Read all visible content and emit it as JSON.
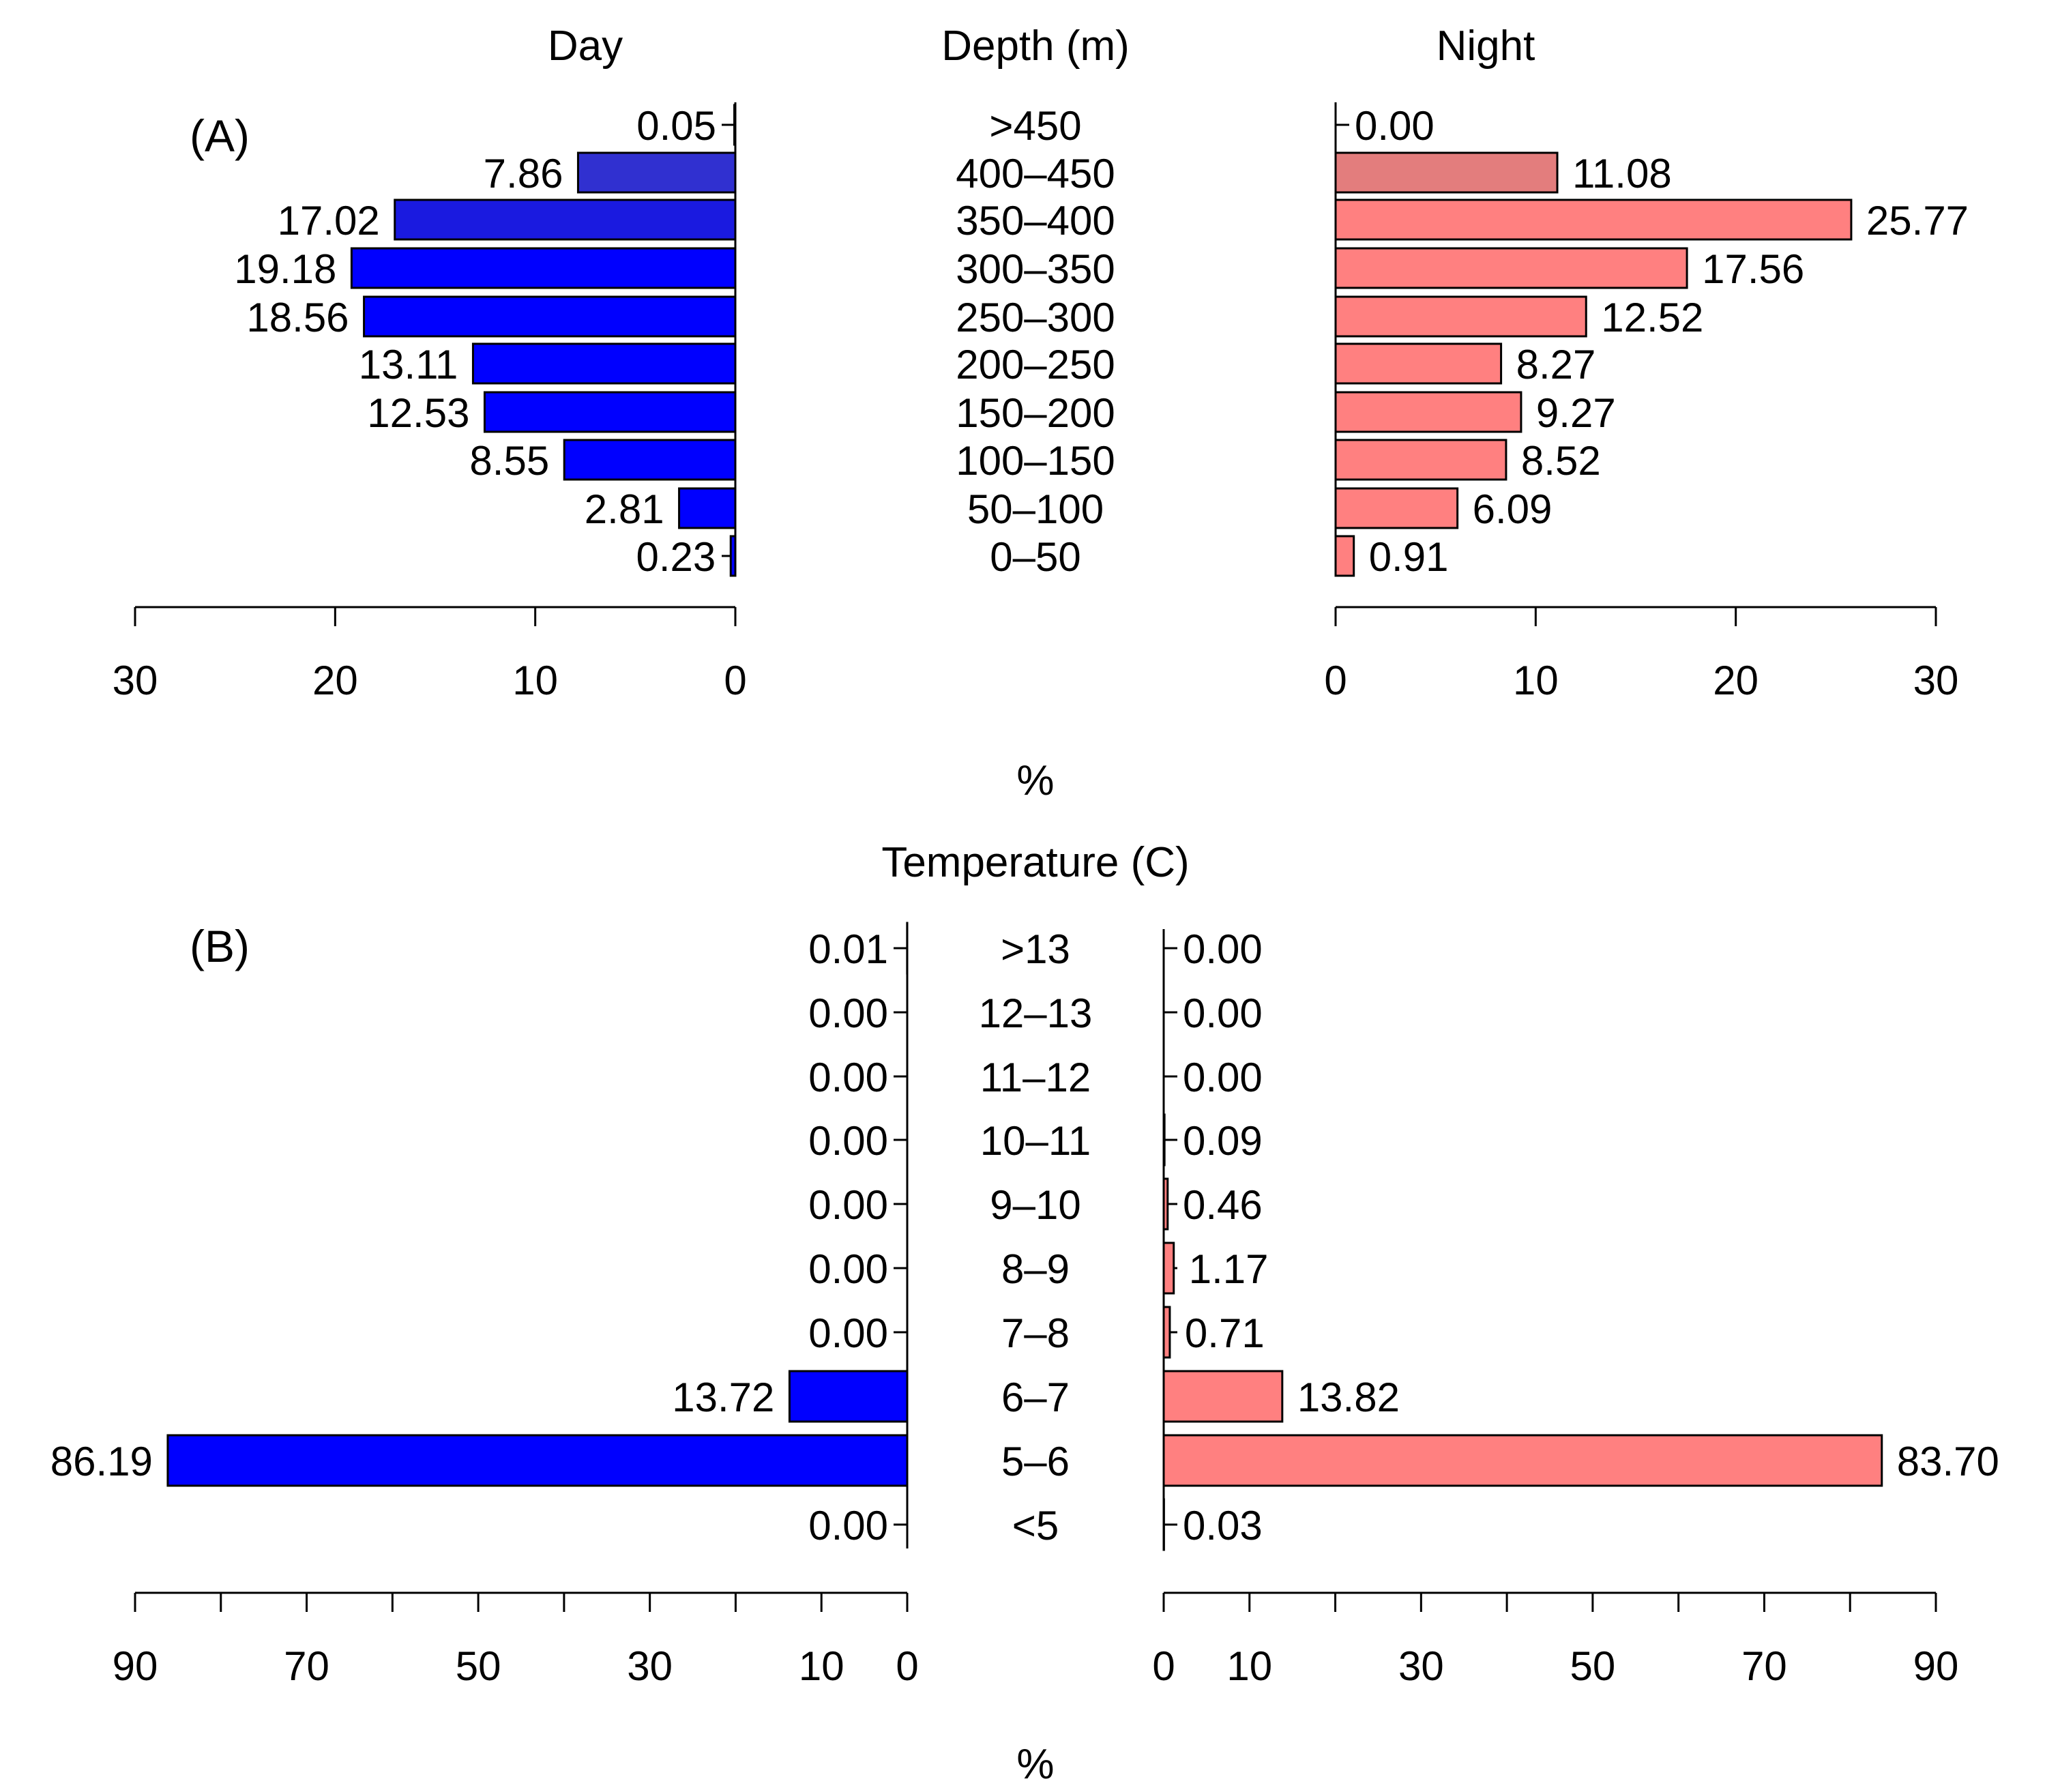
{
  "chart_data": [
    {
      "type": "bar",
      "panel_label": "(A)",
      "category_title": "Depth (m)",
      "categories": [
        ">450",
        "400–450",
        "350–400",
        "300–350",
        "250–300",
        "200–250",
        "150–200",
        "100–150",
        "50–100",
        "0–50"
      ],
      "series": [
        {
          "name": "Day",
          "values": [
            0.05,
            7.86,
            17.02,
            19.18,
            18.56,
            13.11,
            12.53,
            8.55,
            2.81,
            0.23
          ],
          "value_labels": [
            "0.05",
            "7.86",
            "17.02",
            "19.18",
            "18.56",
            "13.11",
            "12.53",
            "8.55",
            "2.81",
            "0.23"
          ],
          "colors": [
            "#2020d0",
            "#3030d0",
            "#1a1ae0",
            "#0000ff",
            "#0000ff",
            "#0000ff",
            "#0000ff",
            "#0000ff",
            "#0000ff",
            "#0000ff"
          ],
          "xlim": [
            0,
            30
          ],
          "ticks": [
            30,
            20,
            10,
            0
          ]
        },
        {
          "name": "Night",
          "values": [
            0.0,
            11.08,
            25.77,
            17.56,
            12.52,
            8.27,
            9.27,
            8.52,
            6.09,
            0.91
          ],
          "value_labels": [
            "0.00",
            "11.08",
            "25.77",
            "17.56",
            "12.52",
            "8.27",
            "9.27",
            "8.52",
            "6.09",
            "0.91"
          ],
          "colors": [
            "#ff8080",
            "#e37d7d",
            "#ff8080",
            "#ff8080",
            "#ff8080",
            "#ff8080",
            "#ff8080",
            "#ff8080",
            "#ff8080",
            "#ff8080"
          ],
          "xlim": [
            0,
            30
          ],
          "ticks": [
            0,
            10,
            20,
            30
          ]
        }
      ],
      "xlabel": "%"
    },
    {
      "type": "bar",
      "panel_label": "(B)",
      "category_title": "Temperature (C)",
      "categories": [
        ">13",
        "12–13",
        "11–12",
        "10–11",
        "9–10",
        "8–9",
        "7–8",
        "6–7",
        "5–6",
        "<5"
      ],
      "series": [
        {
          "name": "Day",
          "values": [
            0.01,
            0.0,
            0.0,
            0.0,
            0.0,
            0.0,
            0.0,
            13.72,
            86.19,
            0.0
          ],
          "value_labels": [
            "0.01",
            "0.00",
            "0.00",
            "0.00",
            "0.00",
            "0.00",
            "0.00",
            "13.72",
            "86.19",
            "0.00"
          ],
          "color": "#0000ff",
          "xlim": [
            0,
            90
          ],
          "ticks": [
            90,
            70,
            50,
            30,
            10,
            0
          ],
          "minor_ticks": [
            80,
            60,
            40,
            20
          ]
        },
        {
          "name": "Night",
          "values": [
            0.0,
            0.0,
            0.0,
            0.09,
            0.46,
            1.17,
            0.71,
            13.82,
            83.7,
            0.03
          ],
          "value_labels": [
            "0.00",
            "0.00",
            "0.00",
            "0.09",
            "0.46",
            "1.17",
            "0.71",
            "13.82",
            "83.70",
            "0.03"
          ],
          "color": "#ff8080",
          "xlim": [
            0,
            90
          ],
          "ticks": [
            0,
            10,
            30,
            50,
            70,
            90
          ],
          "minor_ticks": [
            20,
            40,
            60,
            80
          ]
        }
      ],
      "xlabel": "%"
    }
  ]
}
